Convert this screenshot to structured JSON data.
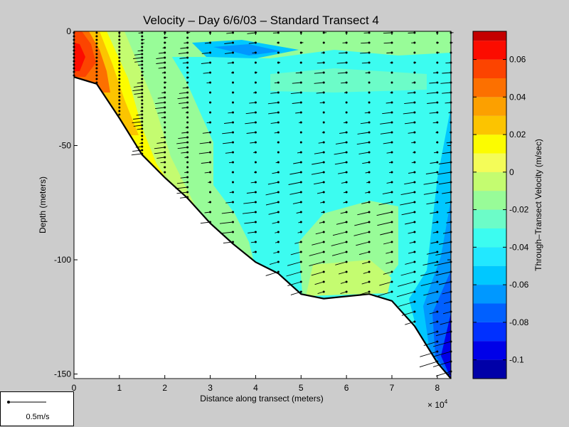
{
  "chart_data": {
    "type": "contour",
    "title": "Velocity – Day 6/6/03 – Standard Transect 4",
    "xlabel": "Distance along transect (meters)",
    "ylabel": "Depth (meters)",
    "x_multiplier_label": "× 10",
    "x_multiplier_exponent": "4",
    "xlim": [
      0,
      83000
    ],
    "ylim": [
      -152,
      0
    ],
    "xticks": [
      {
        "value": 0,
        "label": "0"
      },
      {
        "value": 10000,
        "label": "1"
      },
      {
        "value": 20000,
        "label": "2"
      },
      {
        "value": 30000,
        "label": "3"
      },
      {
        "value": 40000,
        "label": "4"
      },
      {
        "value": 50000,
        "label": "5"
      },
      {
        "value": 60000,
        "label": "6"
      },
      {
        "value": 70000,
        "label": "7"
      },
      {
        "value": 80000,
        "label": "8"
      }
    ],
    "yticks": [
      {
        "value": 0,
        "label": "0"
      },
      {
        "value": -50,
        "label": "-50"
      },
      {
        "value": -100,
        "label": "-100"
      },
      {
        "value": -150,
        "label": "-150"
      }
    ],
    "colorbar": {
      "label": "Through–Transect Velocity (m/sec)",
      "range": [
        -0.11,
        0.075
      ],
      "levels": [
        -0.11,
        -0.1,
        -0.09,
        -0.08,
        -0.07,
        -0.06,
        -0.05,
        -0.04,
        -0.03,
        -0.02,
        -0.01,
        0,
        0.01,
        0.02,
        0.03,
        0.04,
        0.05,
        0.06,
        0.07,
        0.075
      ],
      "colors": [
        "#0000a8",
        "#0000e8",
        "#0030ff",
        "#0060ff",
        "#0098ff",
        "#00c8ff",
        "#22e8ff",
        "#3cfcf0",
        "#6cfcc8",
        "#98fc98",
        "#c4fc70",
        "#f4fc58",
        "#fcfc00",
        "#fcc400",
        "#fca000",
        "#fc7000",
        "#fc4400",
        "#fc0c00",
        "#c40000"
      ],
      "ticks": [
        {
          "value": 0.06,
          "label": "0.06"
        },
        {
          "value": 0.04,
          "label": "0.04"
        },
        {
          "value": 0.02,
          "label": "0.02"
        },
        {
          "value": 0,
          "label": "0"
        },
        {
          "value": -0.02,
          "label": "-0.02"
        },
        {
          "value": -0.04,
          "label": "-0.04"
        },
        {
          "value": -0.06,
          "label": "-0.06"
        },
        {
          "value": -0.08,
          "label": "-0.08"
        },
        {
          "value": -0.1,
          "label": "-0.1"
        }
      ]
    },
    "bottom_profile": {
      "x": [
        0,
        5000,
        10000,
        15000,
        20000,
        25000,
        30000,
        35000,
        40000,
        45000,
        50000,
        55000,
        60000,
        65000,
        70000,
        75000,
        80000,
        83000
      ],
      "depth": [
        -20,
        -23,
        -38,
        -54,
        -64,
        -73,
        -84,
        -93,
        -101,
        -106,
        -115,
        -117,
        -116,
        -115,
        -118,
        -129,
        -145,
        -152
      ]
    },
    "stations_x": [
      0,
      5000,
      10000,
      15000,
      20000,
      25000,
      30000,
      35000,
      40000,
      45000,
      50000,
      55000,
      60000,
      65000,
      70000,
      75000,
      80000,
      83000
    ],
    "scale_arrow_label": "0.5m/s"
  }
}
